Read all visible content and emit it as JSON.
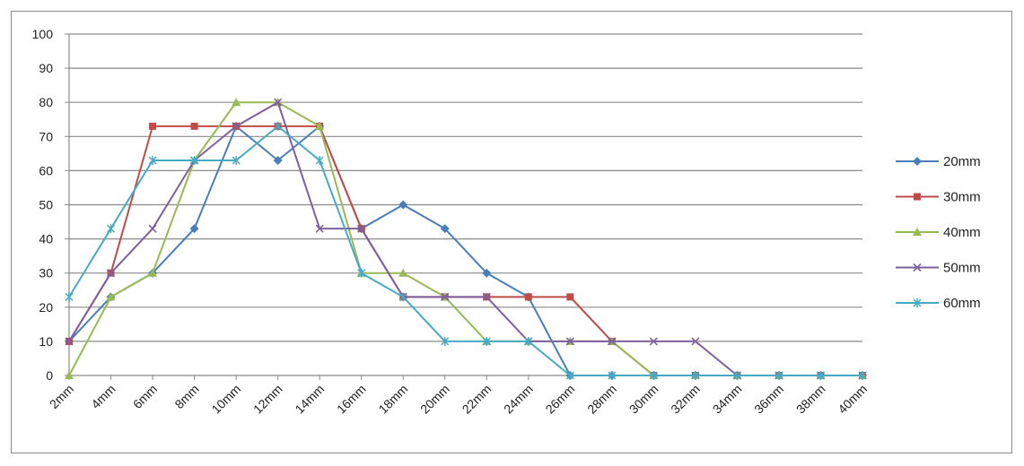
{
  "chart_data": {
    "type": "line",
    "title": "",
    "xlabel": "",
    "ylabel": "",
    "ylim": [
      0,
      100
    ],
    "yticks": [
      0,
      10,
      20,
      30,
      40,
      50,
      60,
      70,
      80,
      90,
      100
    ],
    "grid": "horizontal",
    "legend_position": "right",
    "categories": [
      "2mm",
      "4mm",
      "6mm",
      "8mm",
      "10mm",
      "12mm",
      "14mm",
      "16mm",
      "18mm",
      "20mm",
      "22mm",
      "24mm",
      "26mm",
      "28mm",
      "30mm",
      "32mm",
      "34mm",
      "36mm",
      "38mm",
      "40mm"
    ],
    "series": [
      {
        "name": "20mm",
        "color": "#4a7ebb",
        "marker": "diamond",
        "values": [
          10,
          23,
          30,
          43,
          73,
          63,
          73,
          43,
          50,
          43,
          30,
          23,
          0,
          0,
          0,
          0,
          0,
          0,
          0,
          0
        ]
      },
      {
        "name": "30mm",
        "color": "#be4b48",
        "marker": "square",
        "values": [
          10,
          30,
          73,
          73,
          73,
          73,
          73,
          43,
          23,
          23,
          23,
          23,
          23,
          10,
          0,
          0,
          0,
          0,
          0,
          0
        ]
      },
      {
        "name": "40mm",
        "color": "#98b954",
        "marker": "triangle",
        "values": [
          0,
          23,
          30,
          63,
          80,
          80,
          73,
          30,
          30,
          23,
          10,
          10,
          10,
          10,
          0,
          0,
          0,
          0,
          0,
          0
        ]
      },
      {
        "name": "50mm",
        "color": "#7d60a0",
        "marker": "x",
        "values": [
          10,
          30,
          43,
          63,
          73,
          80,
          43,
          43,
          23,
          23,
          23,
          10,
          10,
          10,
          10,
          10,
          0,
          0,
          0,
          0
        ]
      },
      {
        "name": "60mm",
        "color": "#46aac5",
        "marker": "star",
        "values": [
          23,
          43,
          63,
          63,
          63,
          73,
          63,
          30,
          23,
          10,
          10,
          10,
          0,
          0,
          0,
          0,
          0,
          0,
          0,
          0
        ]
      }
    ]
  }
}
